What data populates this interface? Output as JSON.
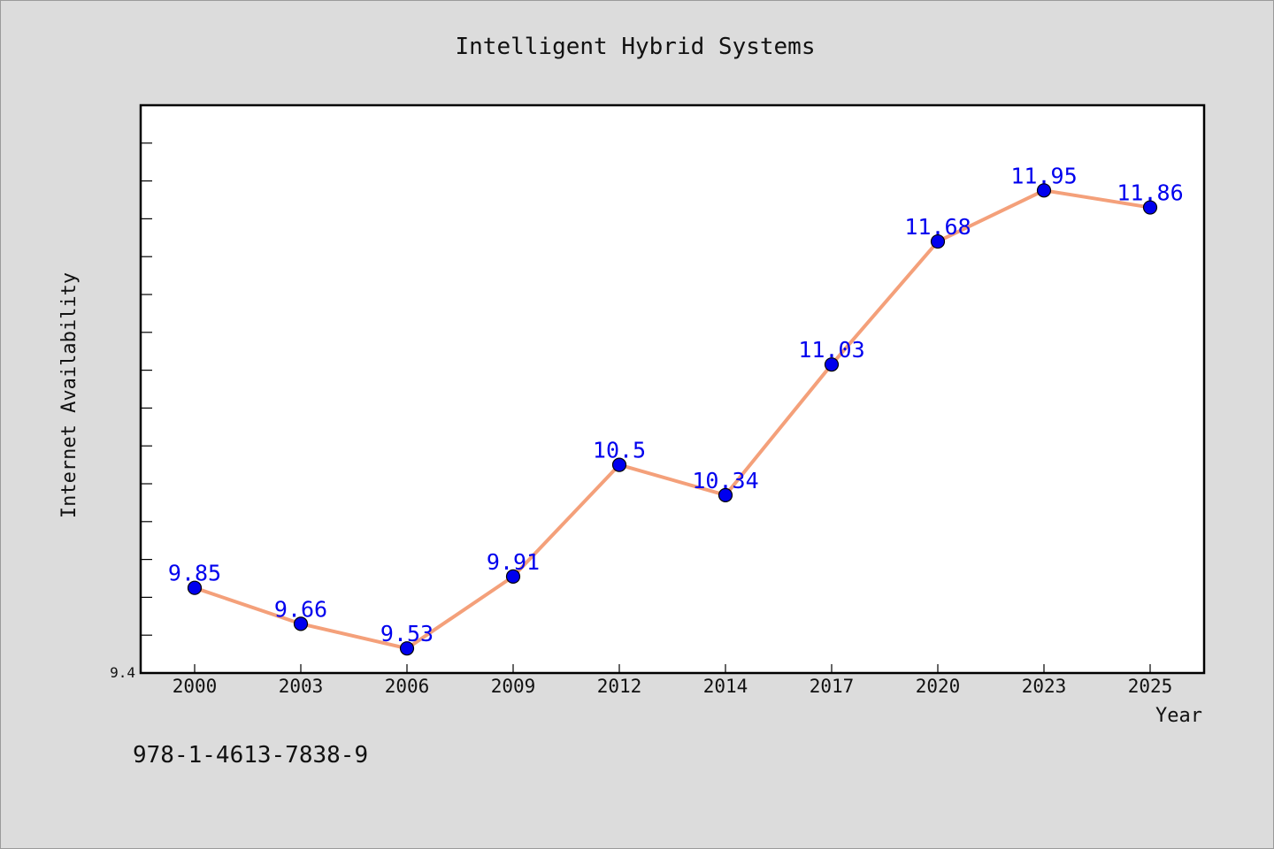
{
  "chart_data": {
    "type": "line",
    "title": "Intelligent Hybrid Systems",
    "xlabel": "Year",
    "ylabel": "Internet Availability",
    "x": [
      "2000",
      "2003",
      "2006",
      "2009",
      "2012",
      "2014",
      "2017",
      "2020",
      "2023",
      "2025"
    ],
    "series": [
      {
        "values": [
          9.85,
          9.66,
          9.53,
          9.91,
          10.5,
          10.34,
          11.03,
          11.68,
          11.95,
          11.86
        ],
        "labels": [
          "9.85",
          "9.66",
          "9.53",
          "9.91",
          "10.5",
          "10.34",
          "11.03",
          "11.68",
          "11.95",
          "11.86"
        ],
        "line_color": "#f4a07a",
        "marker_color": "#0000ee",
        "label_color": "#0000ee"
      }
    ],
    "ylim": [
      9.4,
      12.4
    ],
    "y_tick_labels": [
      {
        "value": 9.4,
        "label": "9.4"
      }
    ],
    "grid": false,
    "legend": "none"
  },
  "footer": {
    "isbn": "978-1-4613-7838-9"
  },
  "colors": {
    "page_background": "#dcdcdc",
    "plot_background": "#ffffff"
  }
}
